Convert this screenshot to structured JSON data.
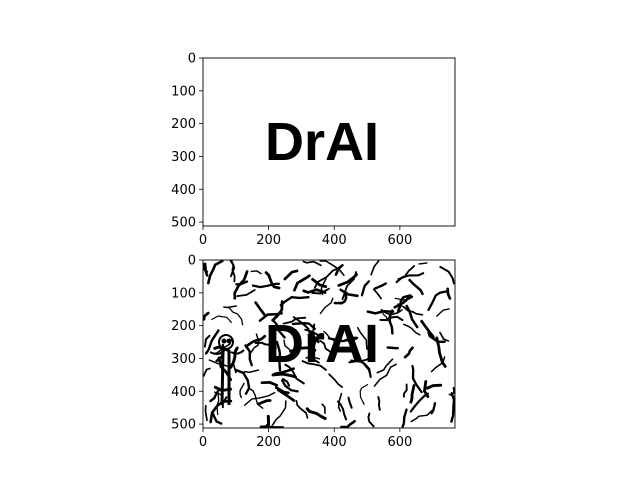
{
  "chart_data": [
    {
      "type": "image",
      "title": "",
      "xlabel": "",
      "ylabel": "",
      "xlim": [
        0,
        768
      ],
      "ylim": [
        512,
        0
      ],
      "xticks": [
        0,
        200,
        400,
        600
      ],
      "yticks": [
        0,
        100,
        200,
        300,
        400,
        500
      ],
      "image_text": "DrAI",
      "content": "black text on white background"
    },
    {
      "type": "image",
      "title": "",
      "xlabel": "",
      "ylabel": "",
      "xlim": [
        0,
        768
      ],
      "ylim": [
        512,
        0
      ],
      "xticks": [
        0,
        200,
        400,
        600
      ],
      "yticks": [
        0,
        100,
        200,
        300,
        400,
        500
      ],
      "image_text": "DrAI",
      "content": "black text with scattered black stroke artifacts and a small stick figure"
    }
  ],
  "colors": {
    "foreground": "#000000",
    "background": "#ffffff"
  }
}
